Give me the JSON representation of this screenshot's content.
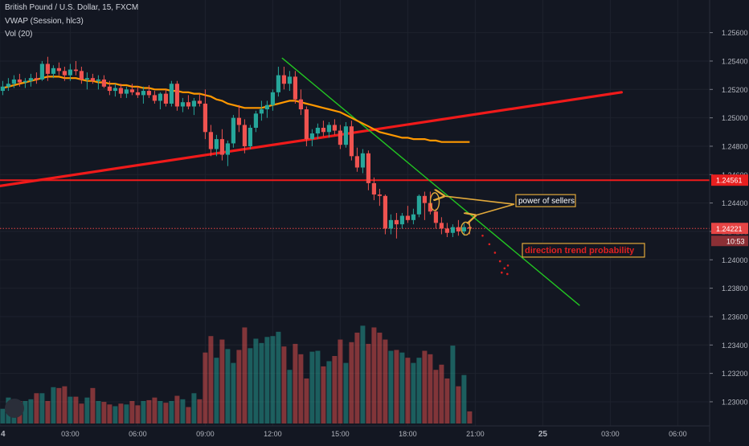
{
  "header": {
    "symbol": "British Pound / U.S. Dollar, 15, FXCM",
    "indicator_vwap": "VWAP (Session, hlc3)",
    "indicator_vol": "Vol (20)"
  },
  "chart_data": {
    "type": "candlestick",
    "ylim": [
      1.2283,
      1.2583
    ],
    "y_ticks": [
      "1.25600",
      "1.25400",
      "1.25200",
      "1.25000",
      "1.24800",
      "1.24600",
      "1.24400",
      "1.24200",
      "1.24000",
      "1.23800",
      "1.23600",
      "1.23400",
      "1.23200",
      "1.23000"
    ],
    "y_tick_values": [
      1.256,
      1.254,
      1.252,
      1.25,
      1.248,
      1.246,
      1.244,
      1.242,
      1.24,
      1.238,
      1.236,
      1.234,
      1.232,
      1.23
    ],
    "x_ticks": [
      "4",
      "03:00",
      "06:00",
      "09:00",
      "12:00",
      "15:00",
      "18:00",
      "21:00",
      "25",
      "03:00",
      "06:00"
    ],
    "x_tick_bars": [
      -0.5,
      12,
      24,
      36,
      48,
      60,
      72,
      84,
      96,
      108,
      120
    ],
    "bars_per_hour": 4,
    "candles": [
      [
        1.2519,
        1.2526,
        1.2516,
        1.2522
      ],
      [
        1.2522,
        1.2528,
        1.2519,
        1.2524
      ],
      [
        1.2524,
        1.253,
        1.2521,
        1.2527
      ],
      [
        1.2527,
        1.2531,
        1.2522,
        1.2525
      ],
      [
        1.2525,
        1.2528,
        1.2521,
        1.2526
      ],
      [
        1.2526,
        1.2531,
        1.2522,
        1.2528
      ],
      [
        1.2528,
        1.2532,
        1.2524,
        1.2527
      ],
      [
        1.2527,
        1.254,
        1.2526,
        1.2538
      ],
      [
        1.2538,
        1.2543,
        1.2526,
        1.2531
      ],
      [
        1.2531,
        1.2537,
        1.2528,
        1.2535
      ],
      [
        1.2535,
        1.2539,
        1.253,
        1.2533
      ],
      [
        1.2533,
        1.2536,
        1.2526,
        1.253
      ],
      [
        1.253,
        1.2538,
        1.2526,
        1.2534
      ],
      [
        1.2534,
        1.254,
        1.253,
        1.2533
      ],
      [
        1.2533,
        1.2536,
        1.2524,
        1.2527
      ],
      [
        1.2527,
        1.2532,
        1.252,
        1.2528
      ],
      [
        1.2528,
        1.2531,
        1.2524,
        1.2526
      ],
      [
        1.2526,
        1.253,
        1.252,
        1.2527
      ],
      [
        1.2527,
        1.253,
        1.2521,
        1.2522
      ],
      [
        1.2522,
        1.2526,
        1.2516,
        1.2519
      ],
      [
        1.2519,
        1.2524,
        1.2515,
        1.2521
      ],
      [
        1.2521,
        1.2524,
        1.2514,
        1.2517
      ],
      [
        1.2517,
        1.2522,
        1.2514,
        1.252
      ],
      [
        1.252,
        1.2524,
        1.2516,
        1.2518
      ],
      [
        1.2518,
        1.2522,
        1.2514,
        1.2516
      ],
      [
        1.2516,
        1.2522,
        1.251,
        1.2519
      ],
      [
        1.2519,
        1.2523,
        1.2514,
        1.2516
      ],
      [
        1.2516,
        1.2519,
        1.251,
        1.2512
      ],
      [
        1.2512,
        1.2518,
        1.2506,
        1.2517
      ],
      [
        1.2517,
        1.252,
        1.2508,
        1.251
      ],
      [
        1.251,
        1.2526,
        1.2508,
        1.2524
      ],
      [
        1.2524,
        1.2526,
        1.2505,
        1.2508
      ],
      [
        1.2508,
        1.2514,
        1.2504,
        1.2511
      ],
      [
        1.2511,
        1.2516,
        1.2506,
        1.2508
      ],
      [
        1.2508,
        1.2514,
        1.2502,
        1.2512
      ],
      [
        1.2512,
        1.2517,
        1.2508,
        1.251
      ],
      [
        1.251,
        1.252,
        1.2485,
        1.249
      ],
      [
        1.249,
        1.2495,
        1.2473,
        1.2478
      ],
      [
        1.2478,
        1.2488,
        1.2473,
        1.2485
      ],
      [
        1.2485,
        1.2492,
        1.247,
        1.2474
      ],
      [
        1.2474,
        1.2484,
        1.2466,
        1.2482
      ],
      [
        1.2482,
        1.2502,
        1.2479,
        1.25
      ],
      [
        1.25,
        1.2509,
        1.249,
        1.2495
      ],
      [
        1.2495,
        1.2499,
        1.2475,
        1.248
      ],
      [
        1.248,
        1.2495,
        1.2478,
        1.2493
      ],
      [
        1.2493,
        1.2505,
        1.249,
        1.2503
      ],
      [
        1.2503,
        1.2512,
        1.2498,
        1.2506
      ],
      [
        1.2506,
        1.2512,
        1.25,
        1.2509
      ],
      [
        1.2509,
        1.252,
        1.2505,
        1.2518
      ],
      [
        1.2518,
        1.2536,
        1.2515,
        1.253
      ],
      [
        1.253,
        1.2536,
        1.252,
        1.2524
      ],
      [
        1.2524,
        1.2533,
        1.2519,
        1.2529
      ],
      [
        1.2529,
        1.2533,
        1.251,
        1.2513
      ],
      [
        1.2513,
        1.252,
        1.2502,
        1.2506
      ],
      [
        1.2506,
        1.2508,
        1.248,
        1.2485
      ],
      [
        1.2485,
        1.2492,
        1.248,
        1.2489
      ],
      [
        1.2489,
        1.2496,
        1.2485,
        1.2493
      ],
      [
        1.2493,
        1.2498,
        1.2487,
        1.249
      ],
      [
        1.249,
        1.2497,
        1.2486,
        1.2495
      ],
      [
        1.2495,
        1.2499,
        1.2488,
        1.2491
      ],
      [
        1.2491,
        1.2495,
        1.2478,
        1.2481
      ],
      [
        1.2481,
        1.2497,
        1.2479,
        1.2494
      ],
      [
        1.2494,
        1.2498,
        1.247,
        1.2473
      ],
      [
        1.2473,
        1.2479,
        1.2462,
        1.2465
      ],
      [
        1.2465,
        1.2478,
        1.2461,
        1.2475
      ],
      [
        1.2475,
        1.2477,
        1.2449,
        1.2454
      ],
      [
        1.2454,
        1.2458,
        1.2442,
        1.2446
      ],
      [
        1.2446,
        1.245,
        1.2438,
        1.2445
      ],
      [
        1.2445,
        1.2446,
        1.2418,
        1.2422
      ],
      [
        1.2422,
        1.2432,
        1.2418,
        1.2428
      ],
      [
        1.2428,
        1.2433,
        1.2415,
        1.2425
      ],
      [
        1.2425,
        1.2433,
        1.2422,
        1.2431
      ],
      [
        1.2431,
        1.2438,
        1.2426,
        1.2428
      ],
      [
        1.2428,
        1.2436,
        1.2425,
        1.2432
      ],
      [
        1.2432,
        1.2446,
        1.243,
        1.2445
      ],
      [
        1.2445,
        1.2448,
        1.2428,
        1.244
      ],
      [
        1.244,
        1.2448,
        1.2432,
        1.2434
      ],
      [
        1.2434,
        1.2436,
        1.2422,
        1.2426
      ],
      [
        1.2426,
        1.243,
        1.2418,
        1.2422
      ],
      [
        1.2422,
        1.2426,
        1.2416,
        1.2419
      ],
      [
        1.2419,
        1.2425,
        1.2416,
        1.2423
      ],
      [
        1.2423,
        1.2428,
        1.2417,
        1.242
      ],
      [
        1.242,
        1.2426,
        1.2417,
        1.2423
      ],
      [
        1.2423,
        1.2427,
        1.2418,
        1.2422
      ]
    ],
    "volume": {
      "ylim": [
        0,
        1300
      ],
      "values": [
        170,
        300,
        220,
        260,
        260,
        280,
        350,
        350,
        260,
        420,
        410,
        430,
        310,
        310,
        230,
        300,
        410,
        260,
        250,
        220,
        200,
        230,
        220,
        260,
        210,
        260,
        270,
        300,
        260,
        240,
        260,
        320,
        280,
        190,
        350,
        280,
        820,
        1010,
        760,
        970,
        860,
        700,
        850,
        1110,
        870,
        980,
        930,
        1000,
        1010,
        1060,
        890,
        620,
        920,
        800,
        520,
        830,
        840,
        660,
        720,
        780,
        970,
        700,
        940,
        1050,
        1130,
        920,
        1110,
        1050,
        970,
        840,
        850,
        820,
        760,
        700,
        760,
        840,
        800,
        620,
        680,
        520,
        900,
        430,
        560,
        140
      ]
    },
    "vwap": {
      "name": "VWAP (Session, hlc3)",
      "color": "#ff9800",
      "values": [
        1.2521,
        1.2522,
        1.2523,
        1.2524,
        1.2525,
        1.2526,
        1.2527,
        1.2528,
        1.2529,
        1.2529,
        1.2529,
        1.2528,
        1.2528,
        1.2528,
        1.2527,
        1.2526,
        1.2526,
        1.2525,
        1.2525,
        1.2524,
        1.2524,
        1.2523,
        1.2523,
        1.2522,
        1.2522,
        1.2521,
        1.2521,
        1.252,
        1.252,
        1.252,
        1.2519,
        1.2519,
        1.2518,
        1.2518,
        1.2517,
        1.2517,
        1.2516,
        1.2515,
        1.2513,
        1.2512,
        1.251,
        1.2509,
        1.2508,
        1.2507,
        1.2507,
        1.2507,
        1.2507,
        1.2508,
        1.2509,
        1.251,
        1.2511,
        1.2512,
        1.2512,
        1.2511,
        1.251,
        1.2509,
        1.2508,
        1.2507,
        1.2506,
        1.2505,
        1.2504,
        1.2502,
        1.25,
        1.2498,
        1.2496,
        1.2494,
        1.2492,
        1.249,
        1.2489,
        1.2488,
        1.2487,
        1.2486,
        1.2486,
        1.2485,
        1.2485,
        1.2485,
        1.2484,
        1.2484,
        1.2483,
        1.2483,
        1.2483,
        1.2483,
        1.2483,
        1.2483
      ]
    },
    "horizontal_lines": [
      {
        "price": 1.24561,
        "label": "1.24561",
        "color": "#f01a1a"
      },
      {
        "price": 1.24221,
        "label": "1.24221",
        "color": "#e64545"
      }
    ],
    "time_label": "10:53",
    "trendlines": [
      {
        "name": "red-support-trendline",
        "color": "#f01a1a",
        "from": [
          -0.5,
          1.2452
        ],
        "to": [
          110,
          1.2518
        ]
      },
      {
        "name": "green-down-trendline",
        "color": "#22c522",
        "from": [
          49.7,
          1.2542
        ],
        "to": [
          102.5,
          1.2368
        ]
      }
    ],
    "annotations": [
      {
        "text": "power of sellers",
        "color": "#ffffff",
        "box_color": "#e2a93b",
        "price": 1.2438
      },
      {
        "text": "direction trend probability",
        "color": "#e02020",
        "box_color": "#e2a93b",
        "price": 1.2407
      }
    ],
    "grid": true
  }
}
